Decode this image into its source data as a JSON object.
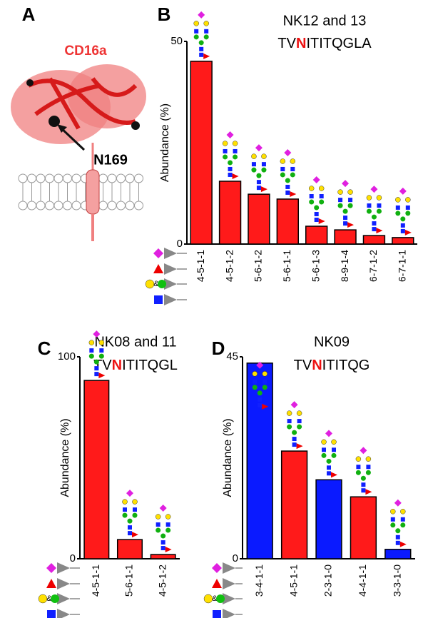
{
  "panel_a": {
    "label": "A",
    "protein": "CD16a",
    "site": "N169"
  },
  "key_and": "&",
  "chart_data": [
    {
      "type": "bar",
      "panel": "B",
      "title": "NK12 and 13",
      "subtitle": [
        "TV",
        "N",
        "ITITQGLA"
      ],
      "subtitle_colors": [
        "#000000",
        "#ee1111",
        "#000000"
      ],
      "y_label": "Abundance (%)",
      "categories": [
        "4-5-1-1",
        "4-5-1-2",
        "5-6-1-2",
        "5-6-1-1",
        "5-6-1-3",
        "8-9-1-4",
        "6-7-1-2",
        "6-7-1-1"
      ],
      "values": [
        45.1,
        15.5,
        12.3,
        11.1,
        4.4,
        3.5,
        2.1,
        1.6
      ],
      "color": "#ff1a1a",
      "ylim": [
        0,
        50
      ],
      "yticks": [
        0,
        50
      ]
    },
    {
      "type": "bar",
      "panel": "C",
      "title": "NK08 and 11",
      "subtitle": [
        "TV",
        "N",
        "ITITQGL"
      ],
      "subtitle_colors": [
        "#000000",
        "#ee1111",
        "#000000"
      ],
      "y_label": "Abundance (%)",
      "categories": [
        "4-5-1-1",
        "5-6-1-1",
        "4-5-1-2"
      ],
      "values": [
        88.3,
        9.5,
        2.1
      ],
      "color": "#ff1a1a",
      "ylim": [
        0,
        100
      ],
      "yticks": [
        0,
        100
      ]
    },
    {
      "type": "bar",
      "panel": "D",
      "title": "NK09",
      "subtitle": [
        "TV",
        "N",
        "ITITQG"
      ],
      "subtitle_colors": [
        "#000000",
        "#ee1111",
        "#000000"
      ],
      "y_label": "Abundance (%)",
      "categories": [
        "3-4-1-1",
        "4-5-1-1",
        "2-3-1-0",
        "4-4-1-1",
        "3-3-1-0"
      ],
      "values": [
        43.6,
        24.0,
        17.6,
        13.8,
        2.1
      ],
      "colors": [
        "#0a1aff",
        "#ff1a1a",
        "#0a1aff",
        "#ff1a1a",
        "#0a1aff"
      ],
      "ylim": [
        0,
        45
      ],
      "yticks": [
        0,
        45
      ]
    }
  ]
}
